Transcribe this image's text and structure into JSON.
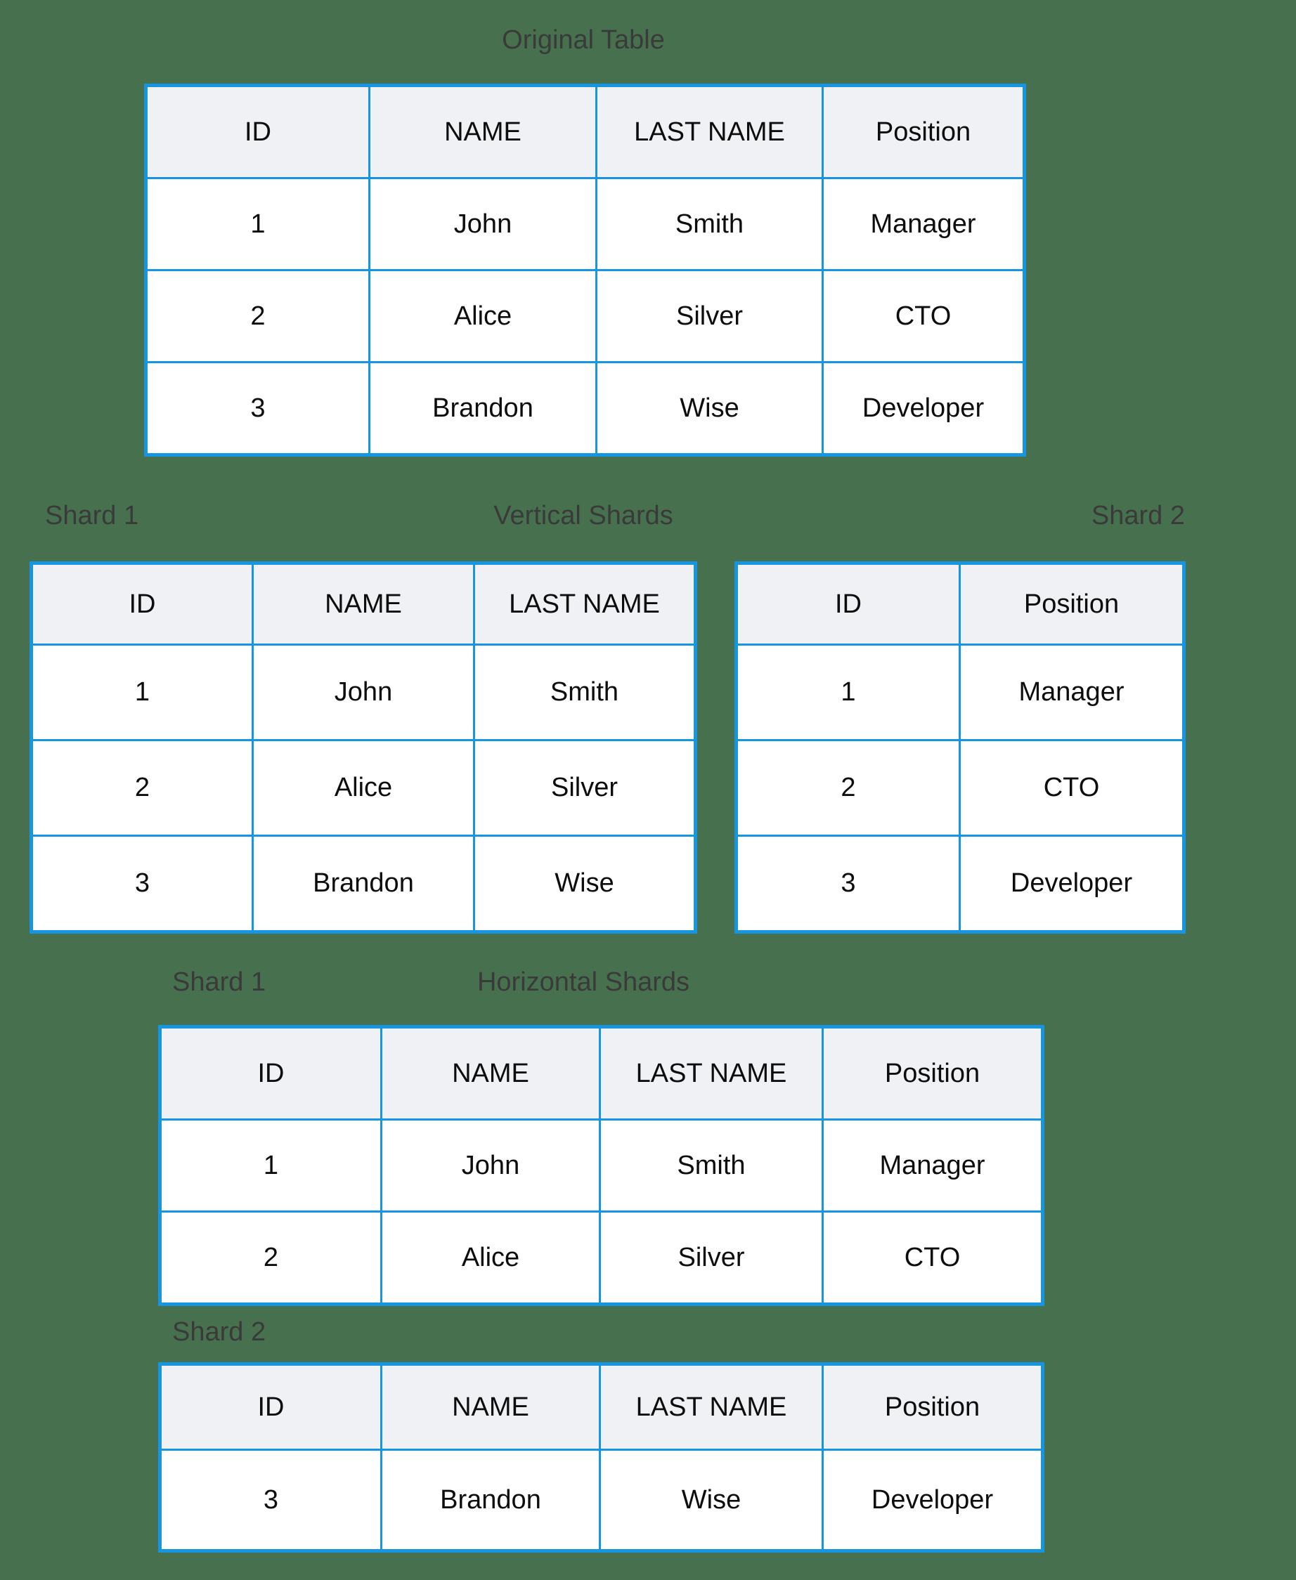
{
  "colors": {
    "background": "#47714E",
    "table_border": "#1696E2",
    "header_bg": "#F0F1F4",
    "cell_bg": "#FFFFFF",
    "cell_text": "#0D0D0D",
    "label_text": "#3A3A3A"
  },
  "sections": {
    "original": {
      "title": "Original Table",
      "table": {
        "headers": [
          "ID",
          "NAME",
          "LAST NAME",
          "Position"
        ],
        "rows": [
          [
            "1",
            "John",
            "Smith",
            "Manager"
          ],
          [
            "2",
            "Alice",
            "Silver",
            "CTO"
          ],
          [
            "3",
            "Brandon",
            "Wise",
            "Developer"
          ]
        ]
      }
    },
    "vertical_shards": {
      "title": "Vertical Shards",
      "shard1_label": "Shard 1",
      "shard2_label": "Shard 2",
      "shard1_table": {
        "headers": [
          "ID",
          "NAME",
          "LAST NAME"
        ],
        "rows": [
          [
            "1",
            "John",
            "Smith"
          ],
          [
            "2",
            "Alice",
            "Silver"
          ],
          [
            "3",
            "Brandon",
            "Wise"
          ]
        ]
      },
      "shard2_table": {
        "headers": [
          "ID",
          "Position"
        ],
        "rows": [
          [
            "1",
            "Manager"
          ],
          [
            "2",
            "CTO"
          ],
          [
            "3",
            "Developer"
          ]
        ]
      }
    },
    "horizontal_shards": {
      "title": "Horizontal Shards",
      "shard1_label": "Shard 1",
      "shard2_label": "Shard 2",
      "shard1_table": {
        "headers": [
          "ID",
          "NAME",
          "LAST NAME",
          "Position"
        ],
        "rows": [
          [
            "1",
            "John",
            "Smith",
            "Manager"
          ],
          [
            "2",
            "Alice",
            "Silver",
            "CTO"
          ]
        ]
      },
      "shard2_table": {
        "headers": [
          "ID",
          "NAME",
          "LAST NAME",
          "Position"
        ],
        "rows": [
          [
            "3",
            "Brandon",
            "Wise",
            "Developer"
          ]
        ]
      }
    }
  }
}
